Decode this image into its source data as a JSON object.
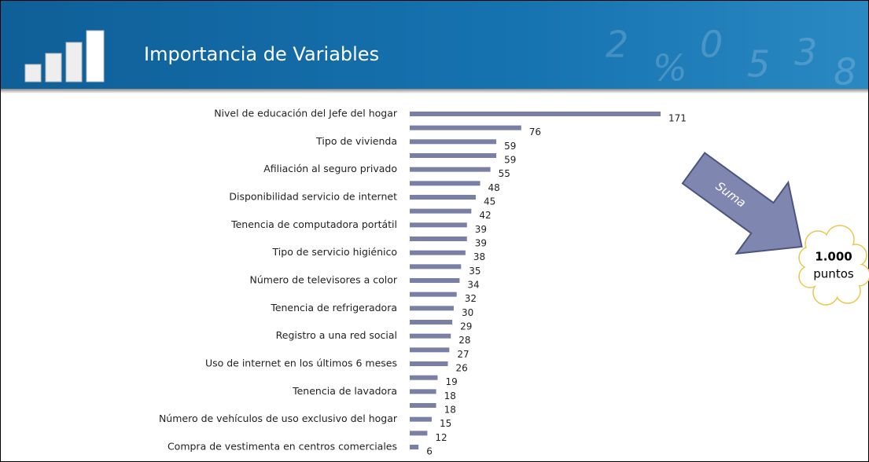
{
  "chart_data": {
    "type": "barh",
    "title": "Importancia de Variables",
    "categories": [
      "Nivel de educación del Jefe del hogar",
      null,
      "Tipo de vivienda",
      null,
      "Afiliación al seguro privado",
      null,
      "Disponibilidad servicio de internet",
      null,
      "Tenencia de computadora portátil",
      null,
      "Tipo de servicio higiénico",
      null,
      "Número de televisores a color",
      null,
      "Tenencia de refrigeradora",
      null,
      "Registro a una red social ",
      null,
      "Uso de internet en los últimos 6 meses",
      null,
      "Tenencia de lavadora",
      null,
      "Número de vehículos de uso exclusivo del hogar",
      null,
      "Compra de vestimenta en centros comerciales"
    ],
    "values": [
      171,
      76,
      59,
      59,
      55,
      48,
      45,
      42,
      39,
      39,
      38,
      35,
      34,
      32,
      30,
      29,
      28,
      27,
      26,
      19,
      18,
      18,
      15,
      12,
      6
    ],
    "color": "#7a7fa6",
    "annotations": [
      "Suma",
      "1.000",
      "puntos"
    ]
  }
}
